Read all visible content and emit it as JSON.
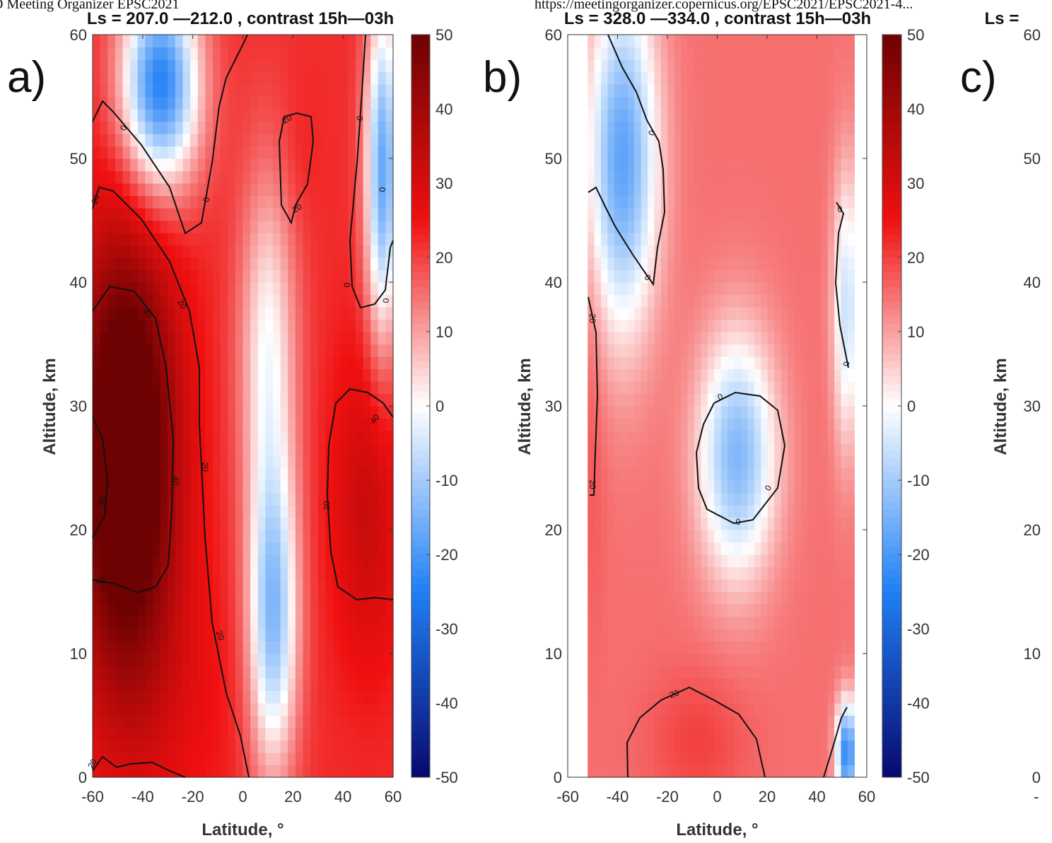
{
  "page_header": {
    "left": "O Meeting Organizer EPSC2021",
    "right": "https://meetingorganizer.copernicus.org/EPSC2021/EPSC2021-4..."
  },
  "colors": {
    "neg_max": "#08086e",
    "neg_mid": "#1f7ff5",
    "zero": "#ffffff",
    "pos_mid": "#f01010",
    "pos_max": "#6e0202",
    "contour": "#111111"
  },
  "chart_data": [
    {
      "type": "heatmap",
      "panel_label": "a)",
      "title": "Ls = 207.0 —212.0 , contrast 15h—03h",
      "xlabel": "Latitude, °",
      "ylabel": "Altitude, km",
      "xlim": [
        -60,
        60
      ],
      "ylim": [
        0,
        60
      ],
      "xticks": [
        "-60",
        "-40",
        "-20",
        "0",
        "20",
        "40",
        "60"
      ],
      "yticks": [
        "0",
        "10",
        "20",
        "30",
        "40",
        "50",
        "60"
      ],
      "data_lat_range": [
        -60,
        60
      ],
      "colorbar": {
        "min": -50,
        "max": 50,
        "ticks": [
          "50",
          "40",
          "30",
          "20",
          "10",
          "0",
          "-10",
          "-20",
          "-30",
          "-40",
          "-50"
        ]
      },
      "contour_levels": [
        "0",
        "20",
        "40",
        "60"
      ],
      "field_features": [
        {
          "lat": -47,
          "alt": 26,
          "value": 58,
          "sx": 14,
          "sy": 12
        },
        {
          "lat": -35,
          "alt": 6,
          "value": 18,
          "sx": 22,
          "sy": 8
        },
        {
          "lat": 50,
          "alt": 22,
          "value": 24,
          "sx": 10,
          "sy": 9
        },
        {
          "lat": 22,
          "alt": 50,
          "value": 15,
          "sx": 6,
          "sy": 4
        },
        {
          "lat": -33,
          "alt": 56,
          "value": -34,
          "sx": 11,
          "sy": 6
        },
        {
          "lat": 56,
          "alt": 49,
          "value": -26,
          "sx": 5,
          "sy": 10
        },
        {
          "lat": 12,
          "alt": 13,
          "value": -22,
          "sx": 7,
          "sy": 9
        },
        {
          "lat": 10,
          "alt": 35,
          "value": -8,
          "sx": 8,
          "sy": 10
        }
      ],
      "base_value": 22
    },
    {
      "type": "heatmap",
      "panel_label": "b)",
      "title": "Ls = 328.0 —334.0 , contrast 15h—03h",
      "xlabel": "Latitude, °",
      "ylabel": "Altitude, km",
      "xlim": [
        -60,
        60
      ],
      "ylim": [
        0,
        60
      ],
      "xticks": [
        "-60",
        "-40",
        "-20",
        "0",
        "20",
        "40",
        "60"
      ],
      "yticks": [
        "0",
        "10",
        "20",
        "30",
        "40",
        "50",
        "60"
      ],
      "data_lat_range": [
        -52,
        55
      ],
      "colorbar": {
        "min": -50,
        "max": 50,
        "ticks": [
          "50",
          "40",
          "30",
          "20",
          "10",
          "0",
          "-10",
          "-20",
          "-30",
          "-40",
          "-50"
        ]
      },
      "contour_levels": [
        "0",
        "20"
      ],
      "field_features": [
        {
          "lat": 8,
          "alt": 26,
          "value": -20,
          "sx": 11,
          "sy": 7
        },
        {
          "lat": -38,
          "alt": 50,
          "value": -24,
          "sx": 10,
          "sy": 10
        },
        {
          "lat": 52,
          "alt": 38,
          "value": -12,
          "sx": 4,
          "sy": 8
        },
        {
          "lat": -8,
          "alt": 3,
          "value": 14,
          "sx": 14,
          "sy": 4
        },
        {
          "lat": -50,
          "alt": 30,
          "value": 12,
          "sx": 4,
          "sy": 12
        },
        {
          "lat": 52,
          "alt": 2,
          "value": -30,
          "sx": 3,
          "sy": 3
        }
      ],
      "base_value": 15
    },
    {
      "type": "heatmap",
      "panel_label": "c)",
      "title": "Ls =",
      "xlabel": "",
      "ylabel": "Altitude, km",
      "ylim": [
        0,
        60
      ],
      "yticks": [
        "0",
        "10",
        "20",
        "30",
        "40",
        "50",
        "60"
      ],
      "xticks": [
        "-"
      ]
    }
  ]
}
